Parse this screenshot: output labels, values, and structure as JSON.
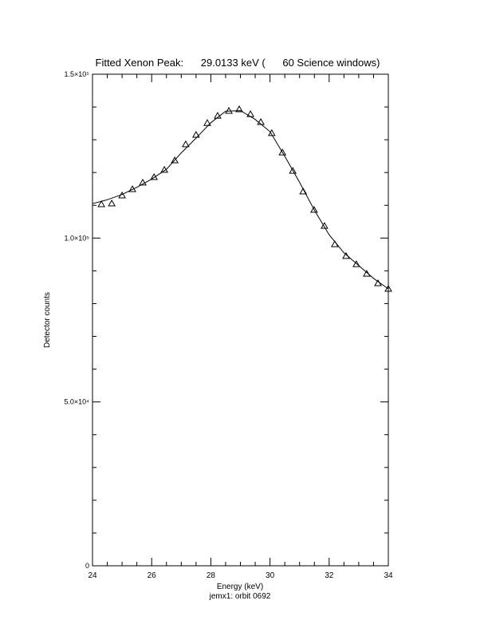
{
  "chart_data": {
    "type": "scatter",
    "title": "Fitted Xenon Peak:      29.0133 keV (      60 Science windows)",
    "x_label": "Energy (keV)",
    "subtitle": "jemx1: orbit 0692",
    "y_label": "Detector counts",
    "xlim": [
      24,
      34
    ],
    "xticks": [
      24,
      26,
      28,
      30,
      32,
      34
    ],
    "ylim": [
      0,
      150000
    ],
    "yticks": [
      {
        "value": 0,
        "label": "0"
      },
      {
        "value": 50000,
        "label": "5.0×10⁴"
      },
      {
        "value": 100000,
        "label": "1.0×10⁵"
      },
      {
        "value": 150000,
        "label": "1.5×10⁵"
      }
    ],
    "yminor_ticks": [
      10000,
      20000,
      30000,
      40000,
      60000,
      70000,
      80000,
      90000,
      110000,
      120000,
      130000,
      140000
    ],
    "xminor_ticks": [
      24.5,
      25,
      25.5,
      26.5,
      27,
      27.5,
      28.5,
      29,
      29.5,
      30.5,
      31,
      31.5,
      32.5,
      33,
      33.5
    ],
    "color": "#000000",
    "series": [
      {
        "marker": "triangle",
        "x": [
          24.3,
          24.65,
          25.0,
          25.35,
          25.7,
          26.08,
          26.43,
          26.78,
          27.15,
          27.5,
          27.88,
          28.23,
          28.61,
          28.96,
          29.34,
          29.69,
          30.06,
          30.42,
          30.77,
          31.12,
          31.49,
          31.84,
          32.19,
          32.57,
          32.92,
          33.27,
          33.65,
          34.0
        ],
        "values": [
          110300,
          110550,
          113000,
          114900,
          116900,
          118600,
          120800,
          123700,
          128600,
          131500,
          135100,
          137300,
          138800,
          139300,
          137800,
          135400,
          132000,
          126100,
          120500,
          114200,
          108600,
          103700,
          98100,
          94500,
          92000,
          89100,
          86200,
          84500
        ]
      },
      {
        "marker": "line",
        "x": [
          24,
          24.5,
          25,
          25.5,
          26,
          26.5,
          27,
          27.5,
          28,
          28.5,
          29,
          29.5,
          30,
          30.5,
          31,
          31.5,
          32,
          32.5,
          33,
          33.5,
          34
        ],
        "values": [
          110500,
          111700,
          113300,
          115500,
          118000,
          121000,
          126000,
          130500,
          135200,
          138700,
          138900,
          136200,
          132500,
          125000,
          117000,
          108500,
          101000,
          95500,
          91600,
          87700,
          84500
        ]
      }
    ]
  }
}
